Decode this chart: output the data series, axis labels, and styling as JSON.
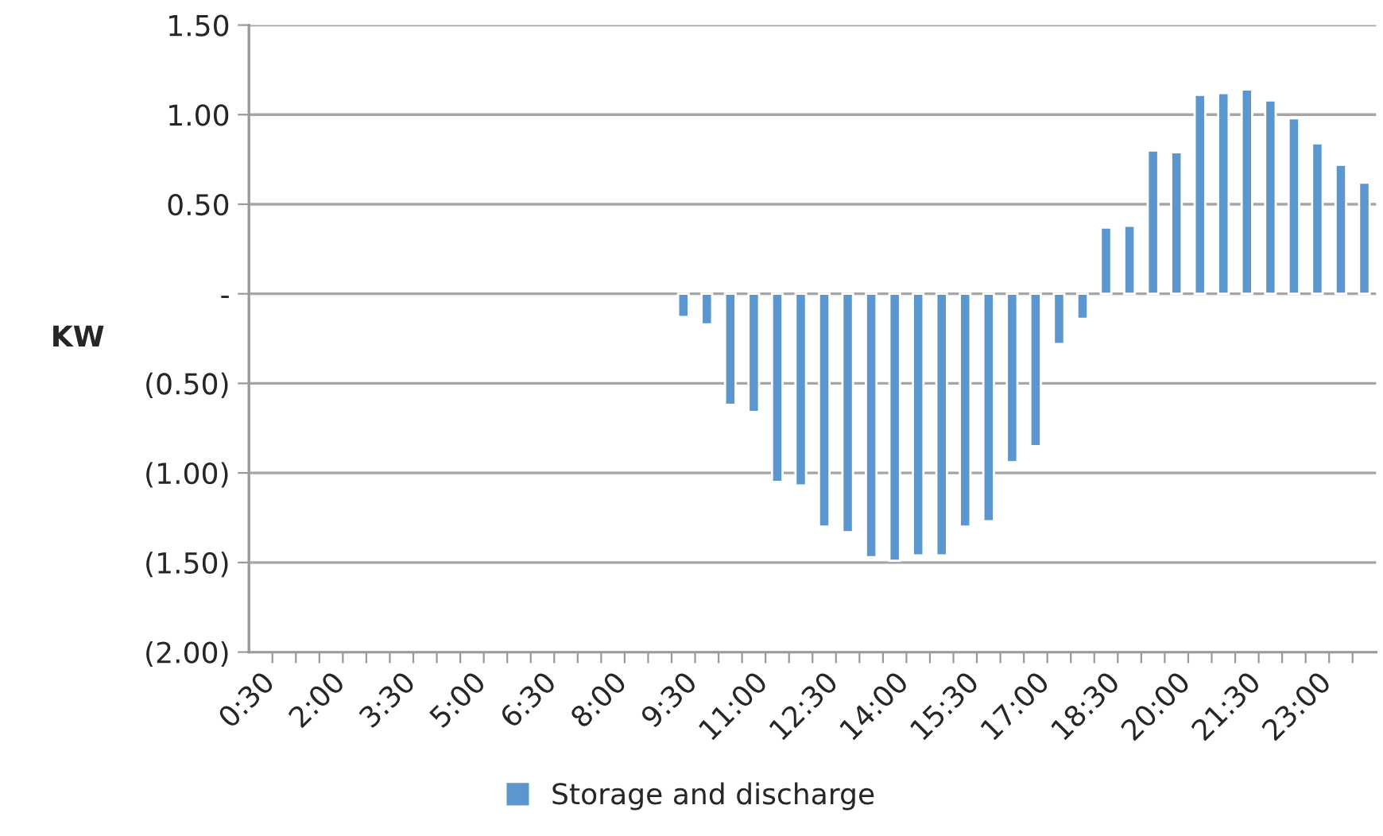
{
  "chart_data": {
    "type": "bar",
    "categories": [
      "0:30",
      null,
      null,
      "2:00",
      null,
      null,
      "3:30",
      null,
      null,
      "5:00",
      null,
      null,
      "6:30",
      null,
      null,
      "8:00",
      null,
      null,
      "9:30",
      null,
      null,
      "11:00",
      null,
      null,
      "12:30",
      null,
      null,
      "14:00",
      null,
      null,
      "15:30",
      null,
      null,
      "17:00",
      null,
      null,
      "18:30",
      null,
      null,
      "20:00",
      null,
      null,
      "21:30",
      null,
      null,
      "23:00",
      null,
      null
    ],
    "series": [
      {
        "name": "Storage and discharge",
        "color": "#5b96cf",
        "values": [
          null,
          null,
          null,
          null,
          null,
          null,
          null,
          null,
          null,
          null,
          null,
          null,
          null,
          null,
          null,
          null,
          null,
          null,
          -0.13,
          -0.17,
          -0.62,
          -0.66,
          -1.05,
          -1.07,
          -1.3,
          -1.33,
          -1.47,
          -1.49,
          -1.46,
          -1.46,
          -1.3,
          -1.27,
          -0.94,
          -0.85,
          -0.28,
          -0.14,
          0.37,
          0.38,
          0.8,
          0.79,
          1.11,
          1.12,
          1.14,
          1.08,
          0.98,
          0.84,
          0.72,
          0.62
        ]
      }
    ],
    "ylabel": "KW",
    "ylim": [
      -2.0,
      1.5
    ],
    "yticks": [
      {
        "value": -2.0,
        "label": "(2.00)"
      },
      {
        "value": -1.5,
        "label": "(1.50)"
      },
      {
        "value": -1.0,
        "label": "(1.00)"
      },
      {
        "value": -0.5,
        "label": "(0.50)"
      },
      {
        "value": 0,
        "label": "-"
      },
      {
        "value": 0.5,
        "label": "0.50"
      },
      {
        "value": 1.0,
        "label": "1.00"
      },
      {
        "value": 1.5,
        "label": "1.50"
      }
    ],
    "grid": "y",
    "legend": "bottom"
  }
}
